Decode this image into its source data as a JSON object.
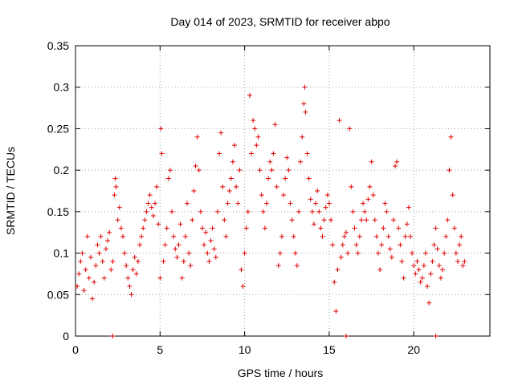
{
  "chart_data": {
    "type": "scatter",
    "title": "Day 014 of 2023, SRMTID for receiver abpo",
    "xlabel": "GPS time / hours",
    "ylabel": "SRMTID / TECUs",
    "xlim": [
      0,
      24.5
    ],
    "ylim": [
      0,
      0.35
    ],
    "xticks": [
      0,
      5,
      10,
      15,
      20
    ],
    "xtick_labels": [
      "0",
      "5",
      "10",
      "15",
      "20"
    ],
    "yticks": [
      0,
      0.05,
      0.1,
      0.15,
      0.2,
      0.25,
      0.3,
      0.35
    ],
    "ytick_labels": [
      "0",
      "0.05",
      "0.1",
      "0.15",
      "0.2",
      "0.25",
      "0.3",
      "0.35"
    ],
    "grid": true,
    "marker": "plus",
    "color": "#e00000",
    "series": [
      {
        "name": "SRMTID",
        "points": [
          [
            0.1,
            0.06
          ],
          [
            0.2,
            0.075
          ],
          [
            0.3,
            0.09
          ],
          [
            0.4,
            0.1
          ],
          [
            0.5,
            0.055
          ],
          [
            0.6,
            0.08
          ],
          [
            0.7,
            0.12
          ],
          [
            0.8,
            0.07
          ],
          [
            0.9,
            0.095
          ],
          [
            1.0,
            0.045
          ],
          [
            1.1,
            0.065
          ],
          [
            1.2,
            0.085
          ],
          [
            1.3,
            0.11
          ],
          [
            1.4,
            0.1
          ],
          [
            1.5,
            0.12
          ],
          [
            1.6,
            0.09
          ],
          [
            1.7,
            0.07
          ],
          [
            1.8,
            0.105
          ],
          [
            1.9,
            0.115
          ],
          [
            2.0,
            0.125
          ],
          [
            2.1,
            0.08
          ],
          [
            2.2,
            0.09
          ],
          [
            2.3,
            0.17
          ],
          [
            2.35,
            0.19
          ],
          [
            2.4,
            0.18
          ],
          [
            2.5,
            0.14
          ],
          [
            2.6,
            0.155
          ],
          [
            2.7,
            0.13
          ],
          [
            2.8,
            0.12
          ],
          [
            2.9,
            0.1
          ],
          [
            3.0,
            0.085
          ],
          [
            3.1,
            0.07
          ],
          [
            3.2,
            0.06
          ],
          [
            3.3,
            0.05
          ],
          [
            3.4,
            0.08
          ],
          [
            3.5,
            0.095
          ],
          [
            3.6,
            0.075
          ],
          [
            3.7,
            0.09
          ],
          [
            3.8,
            0.11
          ],
          [
            3.9,
            0.12
          ],
          [
            4.0,
            0.13
          ],
          [
            4.1,
            0.14
          ],
          [
            4.2,
            0.15
          ],
          [
            4.3,
            0.16
          ],
          [
            4.4,
            0.17
          ],
          [
            4.5,
            0.155
          ],
          [
            4.6,
            0.145
          ],
          [
            4.7,
            0.16
          ],
          [
            4.8,
            0.18
          ],
          [
            4.9,
            0.135
          ],
          [
            5.0,
            0.07
          ],
          [
            5.05,
            0.25
          ],
          [
            5.1,
            0.22
          ],
          [
            5.2,
            0.09
          ],
          [
            5.3,
            0.11
          ],
          [
            5.4,
            0.13
          ],
          [
            5.5,
            0.19
          ],
          [
            5.6,
            0.2
          ],
          [
            5.7,
            0.15
          ],
          [
            5.8,
            0.12
          ],
          [
            5.9,
            0.105
          ],
          [
            6.0,
            0.095
          ],
          [
            6.1,
            0.11
          ],
          [
            6.2,
            0.135
          ],
          [
            6.3,
            0.07
          ],
          [
            6.4,
            0.09
          ],
          [
            6.5,
            0.12
          ],
          [
            6.6,
            0.16
          ],
          [
            6.7,
            0.1
          ],
          [
            6.8,
            0.085
          ],
          [
            6.9,
            0.14
          ],
          [
            7.0,
            0.175
          ],
          [
            7.1,
            0.205
          ],
          [
            7.2,
            0.24
          ],
          [
            7.3,
            0.2
          ],
          [
            7.4,
            0.15
          ],
          [
            7.5,
            0.13
          ],
          [
            7.6,
            0.11
          ],
          [
            7.7,
            0.125
          ],
          [
            7.8,
            0.1
          ],
          [
            7.9,
            0.09
          ],
          [
            8.0,
            0.115
          ],
          [
            8.1,
            0.13
          ],
          [
            8.2,
            0.105
          ],
          [
            8.3,
            0.095
          ],
          [
            8.4,
            0.15
          ],
          [
            8.5,
            0.22
          ],
          [
            8.6,
            0.245
          ],
          [
            8.7,
            0.18
          ],
          [
            8.8,
            0.14
          ],
          [
            8.9,
            0.12
          ],
          [
            9.0,
            0.16
          ],
          [
            9.1,
            0.175
          ],
          [
            9.2,
            0.19
          ],
          [
            9.3,
            0.21
          ],
          [
            9.4,
            0.23
          ],
          [
            9.5,
            0.18
          ],
          [
            9.6,
            0.16
          ],
          [
            9.7,
            0.2
          ],
          [
            9.8,
            0.08
          ],
          [
            9.9,
            0.06
          ],
          [
            10.0,
            0.1
          ],
          [
            10.1,
            0.13
          ],
          [
            10.2,
            0.15
          ],
          [
            10.3,
            0.29
          ],
          [
            10.4,
            0.22
          ],
          [
            10.5,
            0.26
          ],
          [
            10.6,
            0.25
          ],
          [
            10.7,
            0.23
          ],
          [
            10.8,
            0.24
          ],
          [
            10.9,
            0.2
          ],
          [
            11.0,
            0.17
          ],
          [
            11.1,
            0.15
          ],
          [
            11.2,
            0.13
          ],
          [
            11.3,
            0.16
          ],
          [
            11.4,
            0.19
          ],
          [
            11.5,
            0.21
          ],
          [
            11.6,
            0.2
          ],
          [
            11.7,
            0.22
          ],
          [
            11.8,
            0.255
          ],
          [
            11.9,
            0.18
          ],
          [
            12.0,
            0.085
          ],
          [
            12.1,
            0.1
          ],
          [
            12.2,
            0.12
          ],
          [
            12.3,
            0.17
          ],
          [
            12.4,
            0.19
          ],
          [
            12.5,
            0.215
          ],
          [
            12.6,
            0.2
          ],
          [
            12.7,
            0.16
          ],
          [
            12.8,
            0.14
          ],
          [
            12.9,
            0.12
          ],
          [
            13.0,
            0.1
          ],
          [
            13.1,
            0.085
          ],
          [
            13.2,
            0.15
          ],
          [
            13.3,
            0.21
          ],
          [
            13.4,
            0.24
          ],
          [
            13.5,
            0.28
          ],
          [
            13.55,
            0.3
          ],
          [
            13.6,
            0.27
          ],
          [
            13.7,
            0.22
          ],
          [
            13.8,
            0.19
          ],
          [
            13.9,
            0.165
          ],
          [
            14.0,
            0.15
          ],
          [
            14.1,
            0.135
          ],
          [
            14.2,
            0.16
          ],
          [
            14.3,
            0.175
          ],
          [
            14.4,
            0.15
          ],
          [
            14.5,
            0.13
          ],
          [
            14.6,
            0.12
          ],
          [
            14.7,
            0.14
          ],
          [
            14.8,
            0.155
          ],
          [
            14.9,
            0.17
          ],
          [
            15.0,
            0.16
          ],
          [
            15.1,
            0.14
          ],
          [
            15.2,
            0.11
          ],
          [
            15.3,
            0.065
          ],
          [
            15.4,
            0.03
          ],
          [
            15.5,
            0.08
          ],
          [
            15.6,
            0.26
          ],
          [
            15.7,
            0.095
          ],
          [
            15.8,
            0.11
          ],
          [
            15.9,
            0.12
          ],
          [
            16.0,
            0.125
          ],
          [
            16.1,
            0.1
          ],
          [
            16.2,
            0.25
          ],
          [
            16.3,
            0.18
          ],
          [
            16.4,
            0.15
          ],
          [
            16.5,
            0.13
          ],
          [
            16.6,
            0.11
          ],
          [
            16.7,
            0.1
          ],
          [
            16.8,
            0.12
          ],
          [
            16.9,
            0.14
          ],
          [
            17.0,
            0.16
          ],
          [
            17.1,
            0.15
          ],
          [
            17.2,
            0.14
          ],
          [
            17.3,
            0.165
          ],
          [
            17.4,
            0.18
          ],
          [
            17.5,
            0.21
          ],
          [
            17.6,
            0.17
          ],
          [
            17.7,
            0.14
          ],
          [
            17.8,
            0.12
          ],
          [
            17.9,
            0.1
          ],
          [
            18.0,
            0.08
          ],
          [
            18.1,
            0.11
          ],
          [
            18.2,
            0.13
          ],
          [
            18.3,
            0.16
          ],
          [
            18.4,
            0.15
          ],
          [
            18.5,
            0.12
          ],
          [
            18.6,
            0.105
          ],
          [
            18.7,
            0.095
          ],
          [
            18.8,
            0.14
          ],
          [
            18.9,
            0.205
          ],
          [
            19.0,
            0.21
          ],
          [
            19.1,
            0.13
          ],
          [
            19.2,
            0.11
          ],
          [
            19.3,
            0.09
          ],
          [
            19.4,
            0.07
          ],
          [
            19.5,
            0.12
          ],
          [
            19.6,
            0.135
          ],
          [
            19.7,
            0.155
          ],
          [
            19.8,
            0.12
          ],
          [
            19.9,
            0.1
          ],
          [
            20.0,
            0.085
          ],
          [
            20.1,
            0.075
          ],
          [
            20.2,
            0.09
          ],
          [
            20.3,
            0.08
          ],
          [
            20.4,
            0.065
          ],
          [
            20.5,
            0.07
          ],
          [
            20.6,
            0.085
          ],
          [
            20.7,
            0.1
          ],
          [
            20.8,
            0.06
          ],
          [
            20.9,
            0.04
          ],
          [
            21.0,
            0.075
          ],
          [
            21.1,
            0.09
          ],
          [
            21.2,
            0.11
          ],
          [
            21.3,
            0.13
          ],
          [
            21.4,
            0.105
          ],
          [
            21.5,
            0.085
          ],
          [
            21.6,
            0.07
          ],
          [
            21.7,
            0.08
          ],
          [
            21.8,
            0.1
          ],
          [
            21.9,
            0.12
          ],
          [
            22.0,
            0.14
          ],
          [
            22.1,
            0.2
          ],
          [
            22.2,
            0.24
          ],
          [
            22.3,
            0.17
          ],
          [
            22.4,
            0.13
          ],
          [
            22.5,
            0.1
          ],
          [
            22.6,
            0.09
          ],
          [
            22.7,
            0.11
          ],
          [
            22.8,
            0.12
          ],
          [
            22.9,
            0.085
          ],
          [
            23.0,
            0.09
          ],
          [
            2.2,
            0.0
          ],
          [
            16.0,
            0.0
          ],
          [
            21.3,
            0.0
          ]
        ]
      }
    ]
  }
}
